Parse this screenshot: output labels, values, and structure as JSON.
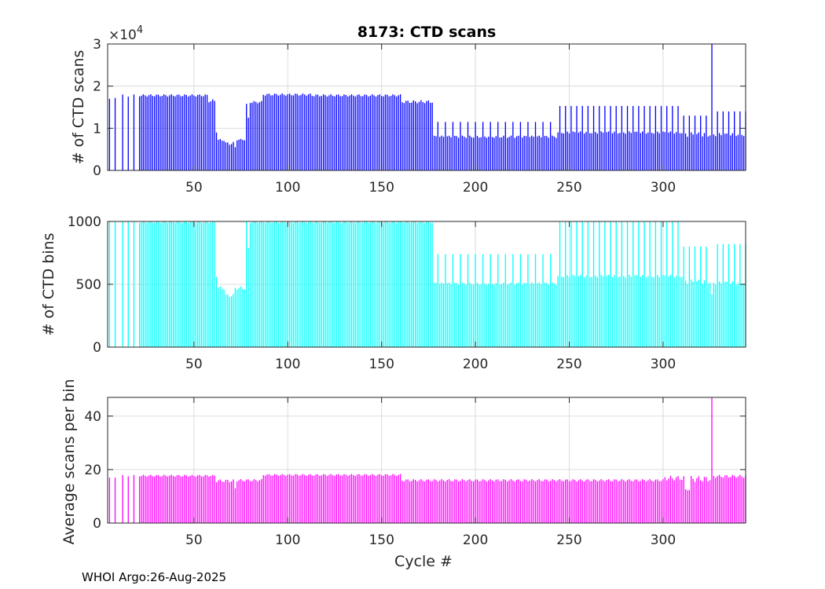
{
  "title": "8173: CTD scans",
  "footer": "WHOI Argo:26-Aug-2025",
  "chart_data": [
    {
      "type": "bar",
      "name": "scans",
      "ylabel": "# of CTD scans",
      "color": "#0000ff",
      "xlim": [
        4,
        344
      ],
      "ylim": [
        0,
        30000
      ],
      "yticks": [
        0,
        10000,
        20000,
        30000
      ],
      "ytick_labels": [
        "0",
        "1",
        "2",
        "3"
      ],
      "exponent_label": "×10",
      "exponent_power": "4",
      "xticks": [
        50,
        100,
        150,
        200,
        250,
        300
      ],
      "grid": true,
      "segments": [
        {
          "from": 4,
          "to": 4,
          "value": 0
        },
        {
          "from": 5,
          "to": 5,
          "value": 17000
        },
        {
          "from": 6,
          "to": 7,
          "value": 0
        },
        {
          "from": 8,
          "to": 8,
          "value": 17200
        },
        {
          "from": 9,
          "to": 11,
          "value": 0
        },
        {
          "from": 12,
          "to": 12,
          "value": 18000
        },
        {
          "from": 13,
          "to": 14,
          "value": 0
        },
        {
          "from": 15,
          "to": 15,
          "value": 17500
        },
        {
          "from": 16,
          "to": 17,
          "value": 0
        },
        {
          "from": 18,
          "to": 18,
          "value": 18000
        },
        {
          "from": 19,
          "to": 20,
          "value": 0
        },
        {
          "from": 21,
          "to": 57,
          "value": 17800,
          "amp": 300
        },
        {
          "from": 58,
          "to": 61,
          "value": 16500,
          "amp": 400
        },
        {
          "from": 62,
          "to": 62,
          "value": 9000
        },
        {
          "from": 63,
          "to": 66,
          "value": 7200,
          "amp": 300
        },
        {
          "from": 67,
          "to": 71,
          "value": 6400,
          "amp": 400
        },
        {
          "from": 72,
          "to": 72,
          "value": 5500
        },
        {
          "from": 73,
          "to": 77,
          "value": 7300,
          "amp": 200
        },
        {
          "from": 78,
          "to": 78,
          "value": 15800
        },
        {
          "from": 79,
          "to": 79,
          "value": 12500
        },
        {
          "from": 80,
          "to": 86,
          "value": 16200,
          "amp": 300
        },
        {
          "from": 87,
          "to": 112,
          "value": 18000,
          "amp": 300
        },
        {
          "from": 113,
          "to": 160,
          "value": 17800,
          "amp": 300
        },
        {
          "from": 161,
          "to": 177,
          "value": 16300,
          "amp": 400
        },
        {
          "from": 178,
          "to": 243,
          "value": 8000,
          "amp": 300,
          "spike_every": 4,
          "spike_phase": 2,
          "spike_value": 11500
        },
        {
          "from": 244,
          "to": 310,
          "value": 9000,
          "amp": 300,
          "spike_every": 3,
          "spike_phase": 1,
          "spike_value": 15300
        },
        {
          "from": 311,
          "to": 325,
          "value": 8500,
          "amp": 600,
          "spike_every": 3,
          "spike_phase": 0,
          "spike_value": 13000
        },
        {
          "from": 326,
          "to": 326,
          "value": 30000
        },
        {
          "from": 327,
          "to": 344,
          "value": 8500,
          "amp": 400,
          "spike_every": 3,
          "spike_phase": 2,
          "spike_value": 14000
        }
      ]
    },
    {
      "type": "bar",
      "name": "bins",
      "ylabel": "# of CTD bins",
      "color": "#00ffff",
      "xlim": [
        4,
        344
      ],
      "ylim": [
        0,
        1000
      ],
      "yticks": [
        0,
        500,
        1000
      ],
      "ytick_labels": [
        "0",
        "500",
        "1000"
      ],
      "xticks": [
        50,
        100,
        150,
        200,
        250,
        300
      ],
      "grid": true,
      "segments": [
        {
          "from": 4,
          "to": 4,
          "value": 0
        },
        {
          "from": 5,
          "to": 5,
          "value": 1000
        },
        {
          "from": 6,
          "to": 7,
          "value": 0
        },
        {
          "from": 8,
          "to": 8,
          "value": 1000
        },
        {
          "from": 9,
          "to": 11,
          "value": 0
        },
        {
          "from": 12,
          "to": 12,
          "value": 1000
        },
        {
          "from": 13,
          "to": 14,
          "value": 0
        },
        {
          "from": 15,
          "to": 15,
          "value": 1000
        },
        {
          "from": 16,
          "to": 17,
          "value": 0
        },
        {
          "from": 18,
          "to": 18,
          "value": 1000
        },
        {
          "from": 19,
          "to": 20,
          "value": 0
        },
        {
          "from": 21,
          "to": 61,
          "value": 995,
          "amp": 8
        },
        {
          "from": 62,
          "to": 62,
          "value": 560
        },
        {
          "from": 63,
          "to": 66,
          "value": 470,
          "amp": 15
        },
        {
          "from": 67,
          "to": 71,
          "value": 410,
          "amp": 15
        },
        {
          "from": 72,
          "to": 77,
          "value": 470,
          "amp": 15
        },
        {
          "from": 78,
          "to": 78,
          "value": 1000
        },
        {
          "from": 79,
          "to": 79,
          "value": 790
        },
        {
          "from": 80,
          "to": 177,
          "value": 995,
          "amp": 8
        },
        {
          "from": 178,
          "to": 243,
          "value": 505,
          "amp": 10,
          "spike_every": 4,
          "spike_phase": 2,
          "spike_value": 740
        },
        {
          "from": 244,
          "to": 310,
          "value": 565,
          "amp": 12,
          "spike_every": 3,
          "spike_phase": 1,
          "spike_value": 1000
        },
        {
          "from": 311,
          "to": 325,
          "value": 520,
          "amp": 20,
          "spike_every": 3,
          "spike_phase": 0,
          "spike_value": 800
        },
        {
          "from": 326,
          "to": 326,
          "value": 420
        },
        {
          "from": 327,
          "to": 344,
          "value": 510,
          "amp": 15,
          "spike_every": 3,
          "spike_phase": 2,
          "spike_value": 820
        }
      ]
    },
    {
      "type": "bar",
      "name": "ratio",
      "ylabel": "Average scans per bin",
      "xlabel": "Cycle #",
      "color": "#ff00ff",
      "xlim": [
        4,
        344
      ],
      "ylim": [
        0,
        47
      ],
      "yticks": [
        0,
        20,
        40
      ],
      "ytick_labels": [
        "0",
        "20",
        "40"
      ],
      "xticks": [
        50,
        100,
        150,
        200,
        250,
        300
      ],
      "grid": true,
      "segments": [
        {
          "from": 4,
          "to": 4,
          "value": 0
        },
        {
          "from": 5,
          "to": 5,
          "value": 17
        },
        {
          "from": 6,
          "to": 7,
          "value": 0
        },
        {
          "from": 8,
          "to": 8,
          "value": 17
        },
        {
          "from": 9,
          "to": 11,
          "value": 0
        },
        {
          "from": 12,
          "to": 12,
          "value": 18
        },
        {
          "from": 13,
          "to": 14,
          "value": 0
        },
        {
          "from": 15,
          "to": 15,
          "value": 17.5
        },
        {
          "from": 16,
          "to": 17,
          "value": 0
        },
        {
          "from": 18,
          "to": 18,
          "value": 18
        },
        {
          "from": 19,
          "to": 20,
          "value": 0
        },
        {
          "from": 21,
          "to": 61,
          "value": 17.7,
          "amp": 0.4
        },
        {
          "from": 62,
          "to": 71,
          "value": 15.8,
          "amp": 0.6
        },
        {
          "from": 72,
          "to": 72,
          "value": 13
        },
        {
          "from": 73,
          "to": 86,
          "value": 16,
          "amp": 0.5
        },
        {
          "from": 87,
          "to": 160,
          "value": 18,
          "amp": 0.4
        },
        {
          "from": 161,
          "to": 300,
          "value": 16,
          "amp": 0.5
        },
        {
          "from": 301,
          "to": 311,
          "value": 16.8,
          "amp": 1.0
        },
        {
          "from": 312,
          "to": 314,
          "value": 12.5,
          "amp": 0.3
        },
        {
          "from": 315,
          "to": 325,
          "value": 16.5,
          "amp": 1.2
        },
        {
          "from": 326,
          "to": 326,
          "value": 47
        },
        {
          "from": 327,
          "to": 344,
          "value": 17.5,
          "amp": 0.6
        }
      ]
    }
  ]
}
